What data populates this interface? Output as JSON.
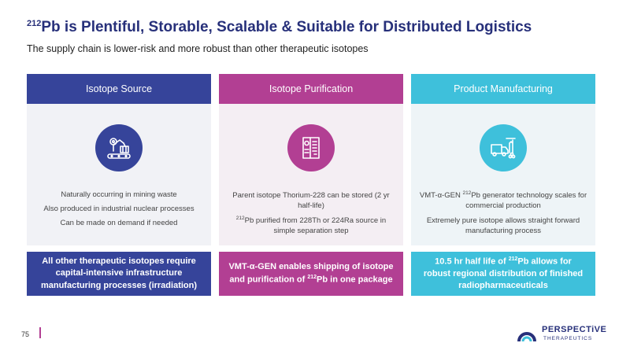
{
  "title": {
    "sup": "212",
    "text": "Pb is Plentiful, Storable, Scalable & Suitable for Distributed Logistics"
  },
  "subtitle": "The supply chain is lower-risk and more robust than other therapeutic isotopes",
  "colors": {
    "navy": "#36449a",
    "magenta": "#b23f93",
    "cyan": "#3ec0db"
  },
  "columns": [
    {
      "header": "Isotope Source",
      "icon": "factory-robot-arm-icon",
      "bullets": [
        "Naturally occurring in mining waste",
        "Also produced in industrial nuclear processes",
        "Can be made on demand if needed"
      ],
      "footer": "All other therapeutic isotopes require capital-intensive infrastructure manufacturing processes (irradiation)"
    },
    {
      "header": "Isotope Purification",
      "icon": "purification-document-icon",
      "bullets": [
        {
          "pre": "",
          "sup": "",
          "text": "Parent isotope Thorium-228 can be stored (2 yr half-life)"
        },
        {
          "pre": "",
          "sup": "212",
          "text": "Pb purified from 228Th or 224Ra source in simple separation step"
        }
      ],
      "footer": {
        "pre": "VMT-α-GEN enables shipping of isotope and purification of ",
        "sup": "212",
        "post": "Pb in one package"
      }
    },
    {
      "header": "Product Manufacturing",
      "icon": "delivery-truck-icon",
      "bullets": [
        {
          "pre": "VMT-α-GEN ",
          "sup": "212",
          "text": "Pb generator technology scales for commercial production"
        },
        {
          "pre": "",
          "sup": "",
          "text": "Extremely pure isotope allows straight forward manufacturing process"
        }
      ],
      "footer": {
        "pre": "10.5 hr half life of ",
        "sup": "212",
        "post": "Pb allows for robust regional distribution of finished radiopharmaceuticals"
      }
    }
  ],
  "page_number": "75",
  "logo": {
    "name": "PERSPECTiVE",
    "sub": "THERAPEUTICS"
  }
}
